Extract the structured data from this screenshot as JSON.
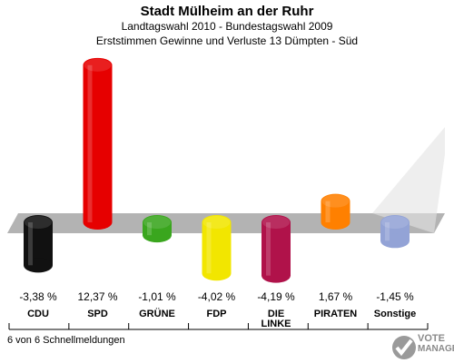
{
  "header": {
    "title": "Stadt Mülheim an der Ruhr",
    "subtitle": "Landtagswahl 2010 - Bundestagswahl 2009",
    "subtitle2": "Erststimmen Gewinne und Verluste 13 Dümpten - Süd"
  },
  "footer": {
    "status": "6 von 6 Schnellmeldungen"
  },
  "logo": {
    "line1": "VOTE",
    "line2": "MANAGER"
  },
  "chart_data": {
    "type": "bar",
    "title": "Stadt Mülheim an der Ruhr",
    "categories": [
      "CDU",
      "SPD",
      "GRÜNE",
      "FDP",
      "DIE LINKE",
      "PIRATEN",
      "Sonstige"
    ],
    "category_lines": [
      [
        "CDU"
      ],
      [
        "SPD"
      ],
      [
        "GRÜNE"
      ],
      [
        "FDP"
      ],
      [
        "DIE",
        "LINKE"
      ],
      [
        "PIRATEN"
      ],
      [
        "Sonstige"
      ]
    ],
    "values": [
      -3.38,
      12.37,
      -1.01,
      -4.02,
      -4.19,
      1.67,
      -1.45
    ],
    "value_labels": [
      "-3,38 %",
      "12,37 %",
      "-1,01 %",
      "-4,02 %",
      "-4,19 %",
      "1,67 %",
      "-1,45 %"
    ],
    "colors": [
      "#111111",
      "#e60000",
      "#3aa61e",
      "#f2e600",
      "#b0124a",
      "#ff8000",
      "#93a3d6"
    ],
    "unit": "%",
    "ylim": [
      -5,
      13
    ],
    "grid": false,
    "legend": "none"
  }
}
